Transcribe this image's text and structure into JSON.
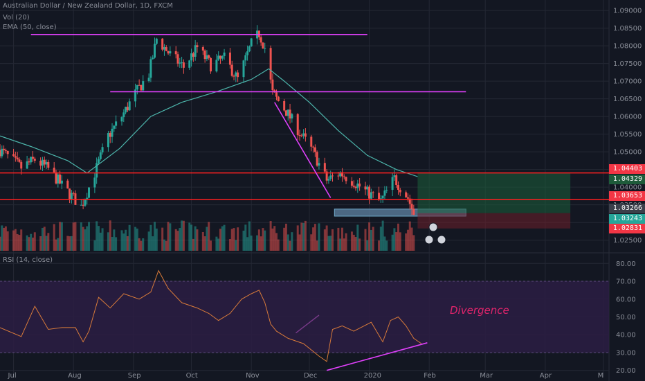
{
  "header": {
    "symbol": "Australian Dollar / New Zealand Dollar, 1D, FXCM",
    "vol_label": "Vol (20)",
    "ema_label": "EMA (50, close)",
    "rsi_label": "RSI (14, close)"
  },
  "annotation_text": "Divergence",
  "price_labels": [
    {
      "value": "1.04403",
      "bg": "#f23645",
      "fg": "#ffffff"
    },
    {
      "value": "1.04329",
      "bg": "#1e5b3a",
      "fg": "#ffffff"
    },
    {
      "value": "1.03653",
      "bg": "#f23645",
      "fg": "#ffffff"
    },
    {
      "value": "1.03266",
      "bg": "#3b3f4a",
      "fg": "#ffffff"
    },
    {
      "value": "1.03243",
      "bg": "#26a69a",
      "fg": "#ffffff"
    },
    {
      "value": "1.02831",
      "bg": "#f23645",
      "fg": "#ffffff"
    }
  ],
  "colors": {
    "up": "#26a69a",
    "down": "#ef5350",
    "ema": "#4db6ac",
    "trendline": "#e040fb",
    "support": "#ff2020",
    "rsi": "#d97b3a",
    "rsi_band": "#2b1d43",
    "grid": "#242834",
    "text": "#8a8e98"
  },
  "chart_data": [
    {
      "type": "candlestick",
      "title": "Australian Dollar / New Zealand Dollar, 1D, FXCM",
      "ylim": [
        1.022,
        1.091
      ],
      "y_ticks": [
        "1.02500",
        "1.03000",
        "1.03500",
        "1.04000",
        "1.04500",
        "1.05000",
        "1.05500",
        "1.06000",
        "1.06500",
        "1.07000",
        "1.07500",
        "1.08000",
        "1.08500",
        "1.09000"
      ],
      "x_ticks": [
        "Jul",
        "Aug",
        "Sep",
        "Oct",
        "Nov",
        "Dec",
        "2020",
        "Feb",
        "Mar",
        "Apr",
        "M"
      ],
      "x_range": [
        "2019-06-24",
        "2020-05-04"
      ],
      "close_path": [
        [
          "2019-06-24",
          1.0505
        ],
        [
          "2019-07-05",
          1.0455
        ],
        [
          "2019-07-12",
          1.0478
        ],
        [
          "2019-07-19",
          1.0452
        ],
        [
          "2019-07-26",
          1.0405
        ],
        [
          "2019-08-05",
          1.0345
        ],
        [
          "2019-08-12",
          1.044
        ],
        [
          "2019-08-19",
          1.0545
        ],
        [
          "2019-08-26",
          1.06
        ],
        [
          "2019-09-02",
          1.0665
        ],
        [
          "2019-09-09",
          1.072
        ],
        [
          "2019-09-13",
          1.082
        ],
        [
          "2019-09-20",
          1.0775
        ],
        [
          "2019-09-27",
          1.074
        ],
        [
          "2019-10-04",
          1.0795
        ],
        [
          "2019-10-11",
          1.0745
        ],
        [
          "2019-10-18",
          1.0765
        ],
        [
          "2019-10-25",
          1.0705
        ],
        [
          "2019-11-01",
          1.0805
        ],
        [
          "2019-11-05",
          1.0835
        ],
        [
          "2019-11-08",
          1.0795
        ],
        [
          "2019-11-12",
          1.0665
        ],
        [
          "2019-11-19",
          1.0615
        ],
        [
          "2019-11-26",
          1.0555
        ],
        [
          "2019-12-03",
          1.05
        ],
        [
          "2019-12-10",
          1.042
        ],
        [
          "2019-12-17",
          1.044
        ],
        [
          "2019-12-24",
          1.0415
        ],
        [
          "2019-12-31",
          1.0385
        ],
        [
          "2020-01-07",
          1.036
        ],
        [
          "2020-01-14",
          1.0425
        ],
        [
          "2020-01-17",
          1.04
        ],
        [
          "2020-01-21",
          1.037
        ],
        [
          "2020-01-24",
          1.0325
        ]
      ],
      "ema_path": [
        [
          "2019-06-24",
          1.0545
        ],
        [
          "2019-07-10",
          1.0515
        ],
        [
          "2019-07-29",
          1.0475
        ],
        [
          "2019-08-08",
          1.044
        ],
        [
          "2019-08-25",
          1.051
        ],
        [
          "2019-09-10",
          1.06
        ],
        [
          "2019-09-26",
          1.064
        ],
        [
          "2019-10-14",
          1.067
        ],
        [
          "2019-11-01",
          1.0705
        ],
        [
          "2019-11-10",
          1.0735
        ],
        [
          "2019-11-18",
          1.07
        ],
        [
          "2019-12-01",
          1.064
        ],
        [
          "2019-12-16",
          1.056
        ],
        [
          "2019-12-31",
          1.049
        ],
        [
          "2020-01-15",
          1.045
        ],
        [
          "2020-01-26",
          1.043
        ]
      ],
      "horizontal_lines": [
        {
          "value": 1.0832,
          "from": "2019-07-10",
          "to": "2019-12-31",
          "style": "trendline"
        },
        {
          "value": 1.067,
          "from": "2019-08-20",
          "to": "2020-02-20",
          "style": "trendline"
        },
        {
          "value": 1.04403,
          "from": "2019-06-24",
          "to": "2020-05-04",
          "style": "support"
        },
        {
          "value": 1.03653,
          "from": "2019-06-24",
          "to": "2020-05-04",
          "style": "support"
        }
      ],
      "trend_segments": [
        {
          "from": [
            "2019-11-13",
            1.064
          ],
          "to": [
            "2019-12-12",
            1.037
          ]
        }
      ],
      "boxes": [
        {
          "from": "2019-12-14",
          "to": "2020-02-20",
          "top": 1.0338,
          "bottom": 1.0318,
          "kind": "zone"
        },
        {
          "from": "2020-01-26",
          "to": "2020-04-14",
          "top": 1.04403,
          "bottom": 1.03266,
          "kind": "target"
        },
        {
          "from": "2020-01-26",
          "to": "2020-04-14",
          "top": 1.03266,
          "bottom": 1.02831,
          "kind": "stop"
        }
      ]
    },
    {
      "type": "rsi",
      "title": "RSI (14, close)",
      "ylim": [
        16,
        84
      ],
      "y_ticks": [
        "20.00",
        "30.00",
        "40.00",
        "50.00",
        "60.00",
        "70.00",
        "80.00"
      ],
      "band": [
        30,
        70
      ],
      "path": [
        [
          "2019-06-24",
          44
        ],
        [
          "2019-07-05",
          39
        ],
        [
          "2019-07-12",
          56
        ],
        [
          "2019-07-19",
          43
        ],
        [
          "2019-07-26",
          44
        ],
        [
          "2019-08-02",
          44
        ],
        [
          "2019-08-06",
          36
        ],
        [
          "2019-08-09",
          42
        ],
        [
          "2019-08-14",
          61
        ],
        [
          "2019-08-20",
          55
        ],
        [
          "2019-08-27",
          63
        ],
        [
          "2019-09-04",
          60
        ],
        [
          "2019-09-10",
          64
        ],
        [
          "2019-09-14",
          76
        ],
        [
          "2019-09-19",
          66
        ],
        [
          "2019-09-26",
          58
        ],
        [
          "2019-10-04",
          55
        ],
        [
          "2019-10-10",
          52
        ],
        [
          "2019-10-15",
          48
        ],
        [
          "2019-10-21",
          52
        ],
        [
          "2019-10-27",
          60
        ],
        [
          "2019-11-01",
          63
        ],
        [
          "2019-11-05",
          65
        ],
        [
          "2019-11-08",
          58
        ],
        [
          "2019-11-11",
          46
        ],
        [
          "2019-11-14",
          42
        ],
        [
          "2019-11-20",
          38
        ],
        [
          "2019-11-28",
          35
        ],
        [
          "2019-12-06",
          28
        ],
        [
          "2019-12-10",
          25
        ],
        [
          "2019-12-13",
          43
        ],
        [
          "2019-12-18",
          45
        ],
        [
          "2019-12-24",
          42
        ],
        [
          "2020-01-02",
          47
        ],
        [
          "2020-01-08",
          36
        ],
        [
          "2020-01-12",
          48
        ],
        [
          "2020-01-16",
          50
        ],
        [
          "2020-01-20",
          45
        ],
        [
          "2020-01-24",
          38
        ],
        [
          "2020-01-28",
          35
        ]
      ],
      "divergence_line": {
        "from": [
          "2019-12-10",
          20
        ],
        "to": [
          "2020-01-31",
          35.5
        ]
      },
      "faint_line": {
        "from": [
          "2019-11-24",
          41
        ],
        "to": [
          "2019-12-06",
          51
        ]
      }
    }
  ]
}
